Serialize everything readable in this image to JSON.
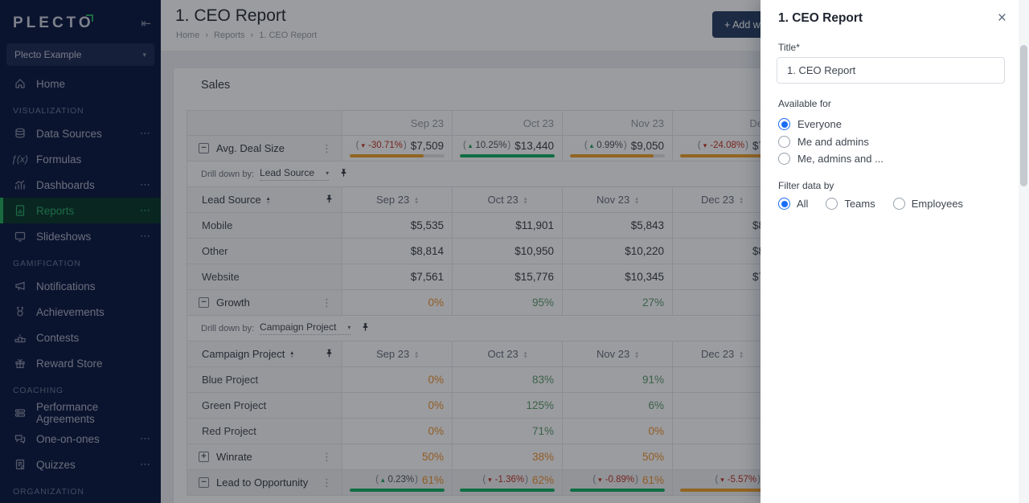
{
  "colors": {
    "accent_green": "#27ae60",
    "bar_green": "#17b267",
    "bar_orange": "#f0a32f",
    "negative_red": "#c0392b",
    "positive_green": "#1e9e5a",
    "radio_blue": "#1a6ef5",
    "sidebar_bg": "#101d45"
  },
  "sidebar": {
    "logo": "PLECTO",
    "collapse_icon": "⇤",
    "org": "Plecto Example",
    "sections": {
      "visualization": "VISUALIZATION",
      "gamification": "GAMIFICATION",
      "coaching": "COACHING",
      "organization": "ORGANIZATION"
    },
    "items": {
      "home": "Home",
      "data_sources": "Data Sources",
      "formulas": "Formulas",
      "dashboards": "Dashboards",
      "reports": "Reports",
      "slideshows": "Slideshows",
      "notifications": "Notifications",
      "achievements": "Achievements",
      "contests": "Contests",
      "reward_store": "Reward Store",
      "performance_agreements": "Performance Agreements",
      "one_on_ones": "One-on-ones",
      "quizzes": "Quizzes"
    },
    "ellipsis": "⋯"
  },
  "header": {
    "title": "1. CEO Report",
    "breadcrumb": {
      "home": "Home",
      "sep": "›",
      "reports": "Reports",
      "current": "1. CEO Report"
    },
    "add_widget": "+ Add widget"
  },
  "widget": {
    "title": "Sales"
  },
  "table": {
    "header": {
      "sep": "Sep 23",
      "oct": "Oct 23",
      "nov": "Nov 23",
      "dec": "De"
    },
    "drill1": {
      "label": "Drill down by:",
      "value": "Lead Source"
    },
    "drill2": {
      "label": "Drill down by:",
      "value": "Campaign Project"
    },
    "sub1": {
      "label": "Lead Source",
      "sep": "Sep 23",
      "oct": "Oct 23",
      "nov": "Nov 23",
      "dec": "Dec 23"
    },
    "sub2": {
      "label": "Campaign Project",
      "sep": "Sep 23",
      "oct": "Oct 23",
      "nov": "Nov 23",
      "dec": "Dec 23"
    },
    "rows": {
      "avg": {
        "label": "Avg. Deal Size",
        "sep": {
          "dir": "down",
          "chg": "-30.71%",
          "val": "$7,509",
          "tone": "dark",
          "bar": "orange",
          "fill": 78
        },
        "oct": {
          "dir": "up",
          "chg": "10.25%",
          "val": "$13,440",
          "tone": "dark",
          "bar": "green",
          "fill": 100
        },
        "nov": {
          "dir": "up",
          "chg": "0.99%",
          "val": "$9,050",
          "tone": "dark",
          "bar": "orange",
          "fill": 88
        },
        "dec": {
          "dir": "down",
          "chg": "-24.08%",
          "val": "$7",
          "tone": "dark",
          "bar": "orange",
          "fill": 100
        }
      },
      "mobile": {
        "label": "Mobile",
        "sep": "$5,535",
        "oct": "$11,901",
        "nov": "$5,843",
        "dec": "$8"
      },
      "other": {
        "label": "Other",
        "sep": "$8,814",
        "oct": "$10,950",
        "nov": "$10,220",
        "dec": "$8"
      },
      "website": {
        "label": "Website",
        "sep": "$7,561",
        "oct": "$15,776",
        "nov": "$10,345",
        "dec": "$7"
      },
      "growth": {
        "label": "Growth",
        "sep": {
          "val": "0%",
          "tone": "orange"
        },
        "oct": {
          "val": "95%",
          "tone": "green"
        },
        "nov": {
          "val": "27%",
          "tone": "green"
        },
        "dec": {
          "val": "-",
          "tone": "red"
        }
      },
      "blue": {
        "label": "Blue Project",
        "sep": {
          "val": "0%",
          "tone": "orange"
        },
        "oct": {
          "val": "83%",
          "tone": "green"
        },
        "nov": {
          "val": "91%",
          "tone": "green"
        },
        "dec": {
          "val": "-",
          "tone": "red"
        }
      },
      "green": {
        "label": "Green Project",
        "sep": {
          "val": "0%",
          "tone": "orange"
        },
        "oct": {
          "val": "125%",
          "tone": "green"
        },
        "nov": {
          "val": "6%",
          "tone": "green"
        },
        "dec": {
          "val": "-",
          "tone": "red"
        }
      },
      "red": {
        "label": "Red Project",
        "sep": {
          "val": "0%",
          "tone": "orange"
        },
        "oct": {
          "val": "71%",
          "tone": "green"
        },
        "nov": {
          "val": "0%",
          "tone": "orange"
        },
        "dec": {
          "val": "",
          "tone": "dark"
        }
      },
      "winrate": {
        "label": "Winrate",
        "sep": {
          "val": "50%",
          "tone": "orange"
        },
        "oct": {
          "val": "38%",
          "tone": "orange"
        },
        "nov": {
          "val": "50%",
          "tone": "orange"
        },
        "dec": {
          "val": "",
          "tone": "dark"
        }
      },
      "l2o": {
        "label": "Lead to Opportunity",
        "sep": {
          "dir": "up",
          "chg": "0.23%",
          "val": "61%",
          "tone": "orange",
          "bar": "green",
          "fill": 100
        },
        "oct": {
          "dir": "down",
          "chg": "-1.36%",
          "val": "62%",
          "tone": "orange",
          "bar": "green",
          "fill": 100
        },
        "nov": {
          "dir": "down",
          "chg": "-0.89%",
          "val": "61%",
          "tone": "orange",
          "bar": "green",
          "fill": 100
        },
        "dec": {
          "dir": "down",
          "chg": "-5.57%",
          "val": "",
          "tone": "orange",
          "bar": "orange",
          "fill": 100
        }
      }
    }
  },
  "panel": {
    "title": "1. CEO Report",
    "title_label": "Title*",
    "title_value": "1. CEO Report",
    "available_label": "Available for",
    "avail_options": {
      "0": "Everyone",
      "1": "Me and admins",
      "2": "Me, admins and ..."
    },
    "available_selected": "Everyone",
    "filter_label": "Filter data by",
    "filter_options": {
      "0": "All",
      "1": "Teams",
      "2": "Employees"
    },
    "filter_selected": "All"
  }
}
